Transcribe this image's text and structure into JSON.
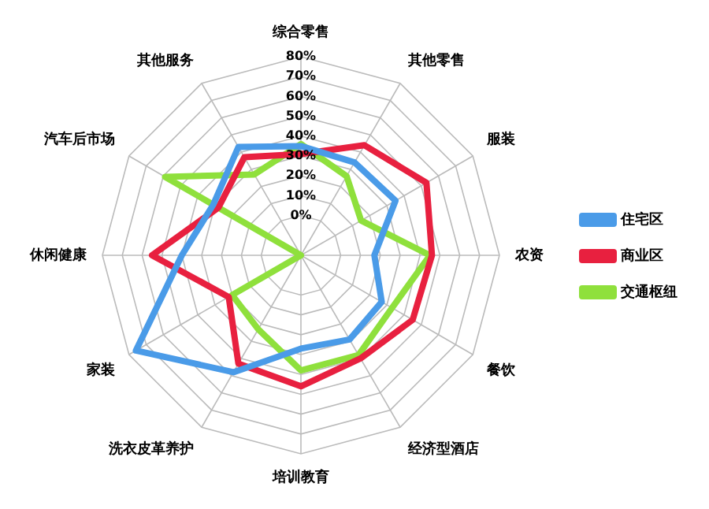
{
  "chart_data": {
    "type": "radar",
    "categories": [
      "综合零售",
      "其他零售",
      "服装",
      "农资",
      "餐饮",
      "经济型酒店",
      "培训教育",
      "洗衣皮革养护",
      "家装",
      "休闲健康",
      "汽车后市场",
      "其他服务"
    ],
    "series": [
      {
        "name": "住宅区",
        "color": "#4a9be8",
        "values": [
          35,
          34,
          35,
          17,
          27,
          29,
          27,
          48,
          76,
          40,
          31,
          43
        ]
      },
      {
        "name": "商业区",
        "color": "#e8203f",
        "values": [
          31,
          44,
          53,
          46,
          45,
          40,
          46,
          43,
          22,
          55,
          28,
          37
        ]
      },
      {
        "name": "交通枢纽",
        "color": "#8fe03c",
        "values": [
          36,
          26,
          15,
          45,
          33,
          38,
          38,
          23,
          20,
          -20,
          59,
          27
        ]
      }
    ],
    "ylim": [
      -20,
      80
    ],
    "yticks": [
      {
        "value": 0,
        "label": "0%"
      },
      {
        "value": 10,
        "label": "10%"
      },
      {
        "value": 20,
        "label": "20%"
      },
      {
        "value": 30,
        "label": "30%"
      },
      {
        "value": 40,
        "label": "40%"
      },
      {
        "value": 50,
        "label": "50%"
      },
      {
        "value": 60,
        "label": "60%"
      },
      {
        "value": 70,
        "label": "70%"
      },
      {
        "value": 80,
        "label": "80%"
      }
    ],
    "grid": true,
    "legend": "right",
    "marker": "none"
  }
}
